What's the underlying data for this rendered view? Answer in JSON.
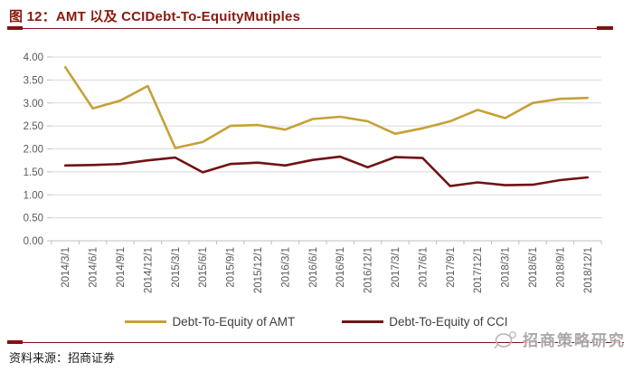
{
  "header": {
    "title": "图 12：AMT 以及 CCIDebt-To-EquityMutiples"
  },
  "footer": {
    "source": "资料来源：招商证券",
    "watermark": "招商策略研究"
  },
  "colors": {
    "accent_red": "#8a190e",
    "rule_red": "#7e1412",
    "amt_line": "#c5a137",
    "cci_line": "#701315",
    "gridline": "#d9d9d9",
    "axis": "#bfbfbf",
    "tick_text": "#595959"
  },
  "chart_data": {
    "type": "line",
    "title": "图 12：AMT 以及 CCIDebt-To-EquityMutiples",
    "xlabel": "",
    "ylabel": "",
    "grid": "horizontal",
    "legend_position": "bottom",
    "ylim": [
      0,
      4
    ],
    "ytick_step": 0.5,
    "yticks": [
      "0.00",
      "0.50",
      "1.00",
      "1.50",
      "2.00",
      "2.50",
      "3.00",
      "3.50",
      "4.00"
    ],
    "categories": [
      "2014/3/1",
      "2014/6/1",
      "2014/9/1",
      "2014/12/1",
      "2015/3/1",
      "2015/6/1",
      "2015/9/1",
      "2015/12/1",
      "2016/3/1",
      "2016/6/1",
      "2016/9/1",
      "2016/12/1",
      "2017/3/1",
      "2017/6/1",
      "2017/9/1",
      "2017/12/1",
      "2018/3/1",
      "2018/6/1",
      "2018/9/1",
      "2018/12/1"
    ],
    "series": [
      {
        "name": "Debt-To-Equity of AMT",
        "color": "#c5a137",
        "values": [
          3.78,
          2.88,
          3.05,
          3.37,
          2.02,
          2.15,
          2.5,
          2.52,
          2.42,
          2.65,
          2.7,
          2.6,
          2.33,
          2.45,
          2.6,
          2.85,
          2.67,
          3.0,
          3.09,
          3.11
        ]
      },
      {
        "name": "Debt-To-Equity of CCI",
        "color": "#701315",
        "values": [
          1.64,
          1.65,
          1.67,
          1.75,
          1.81,
          1.49,
          1.67,
          1.7,
          1.64,
          1.76,
          1.83,
          1.6,
          1.82,
          1.8,
          1.19,
          1.27,
          1.21,
          1.22,
          1.32,
          1.38
        ]
      }
    ]
  }
}
